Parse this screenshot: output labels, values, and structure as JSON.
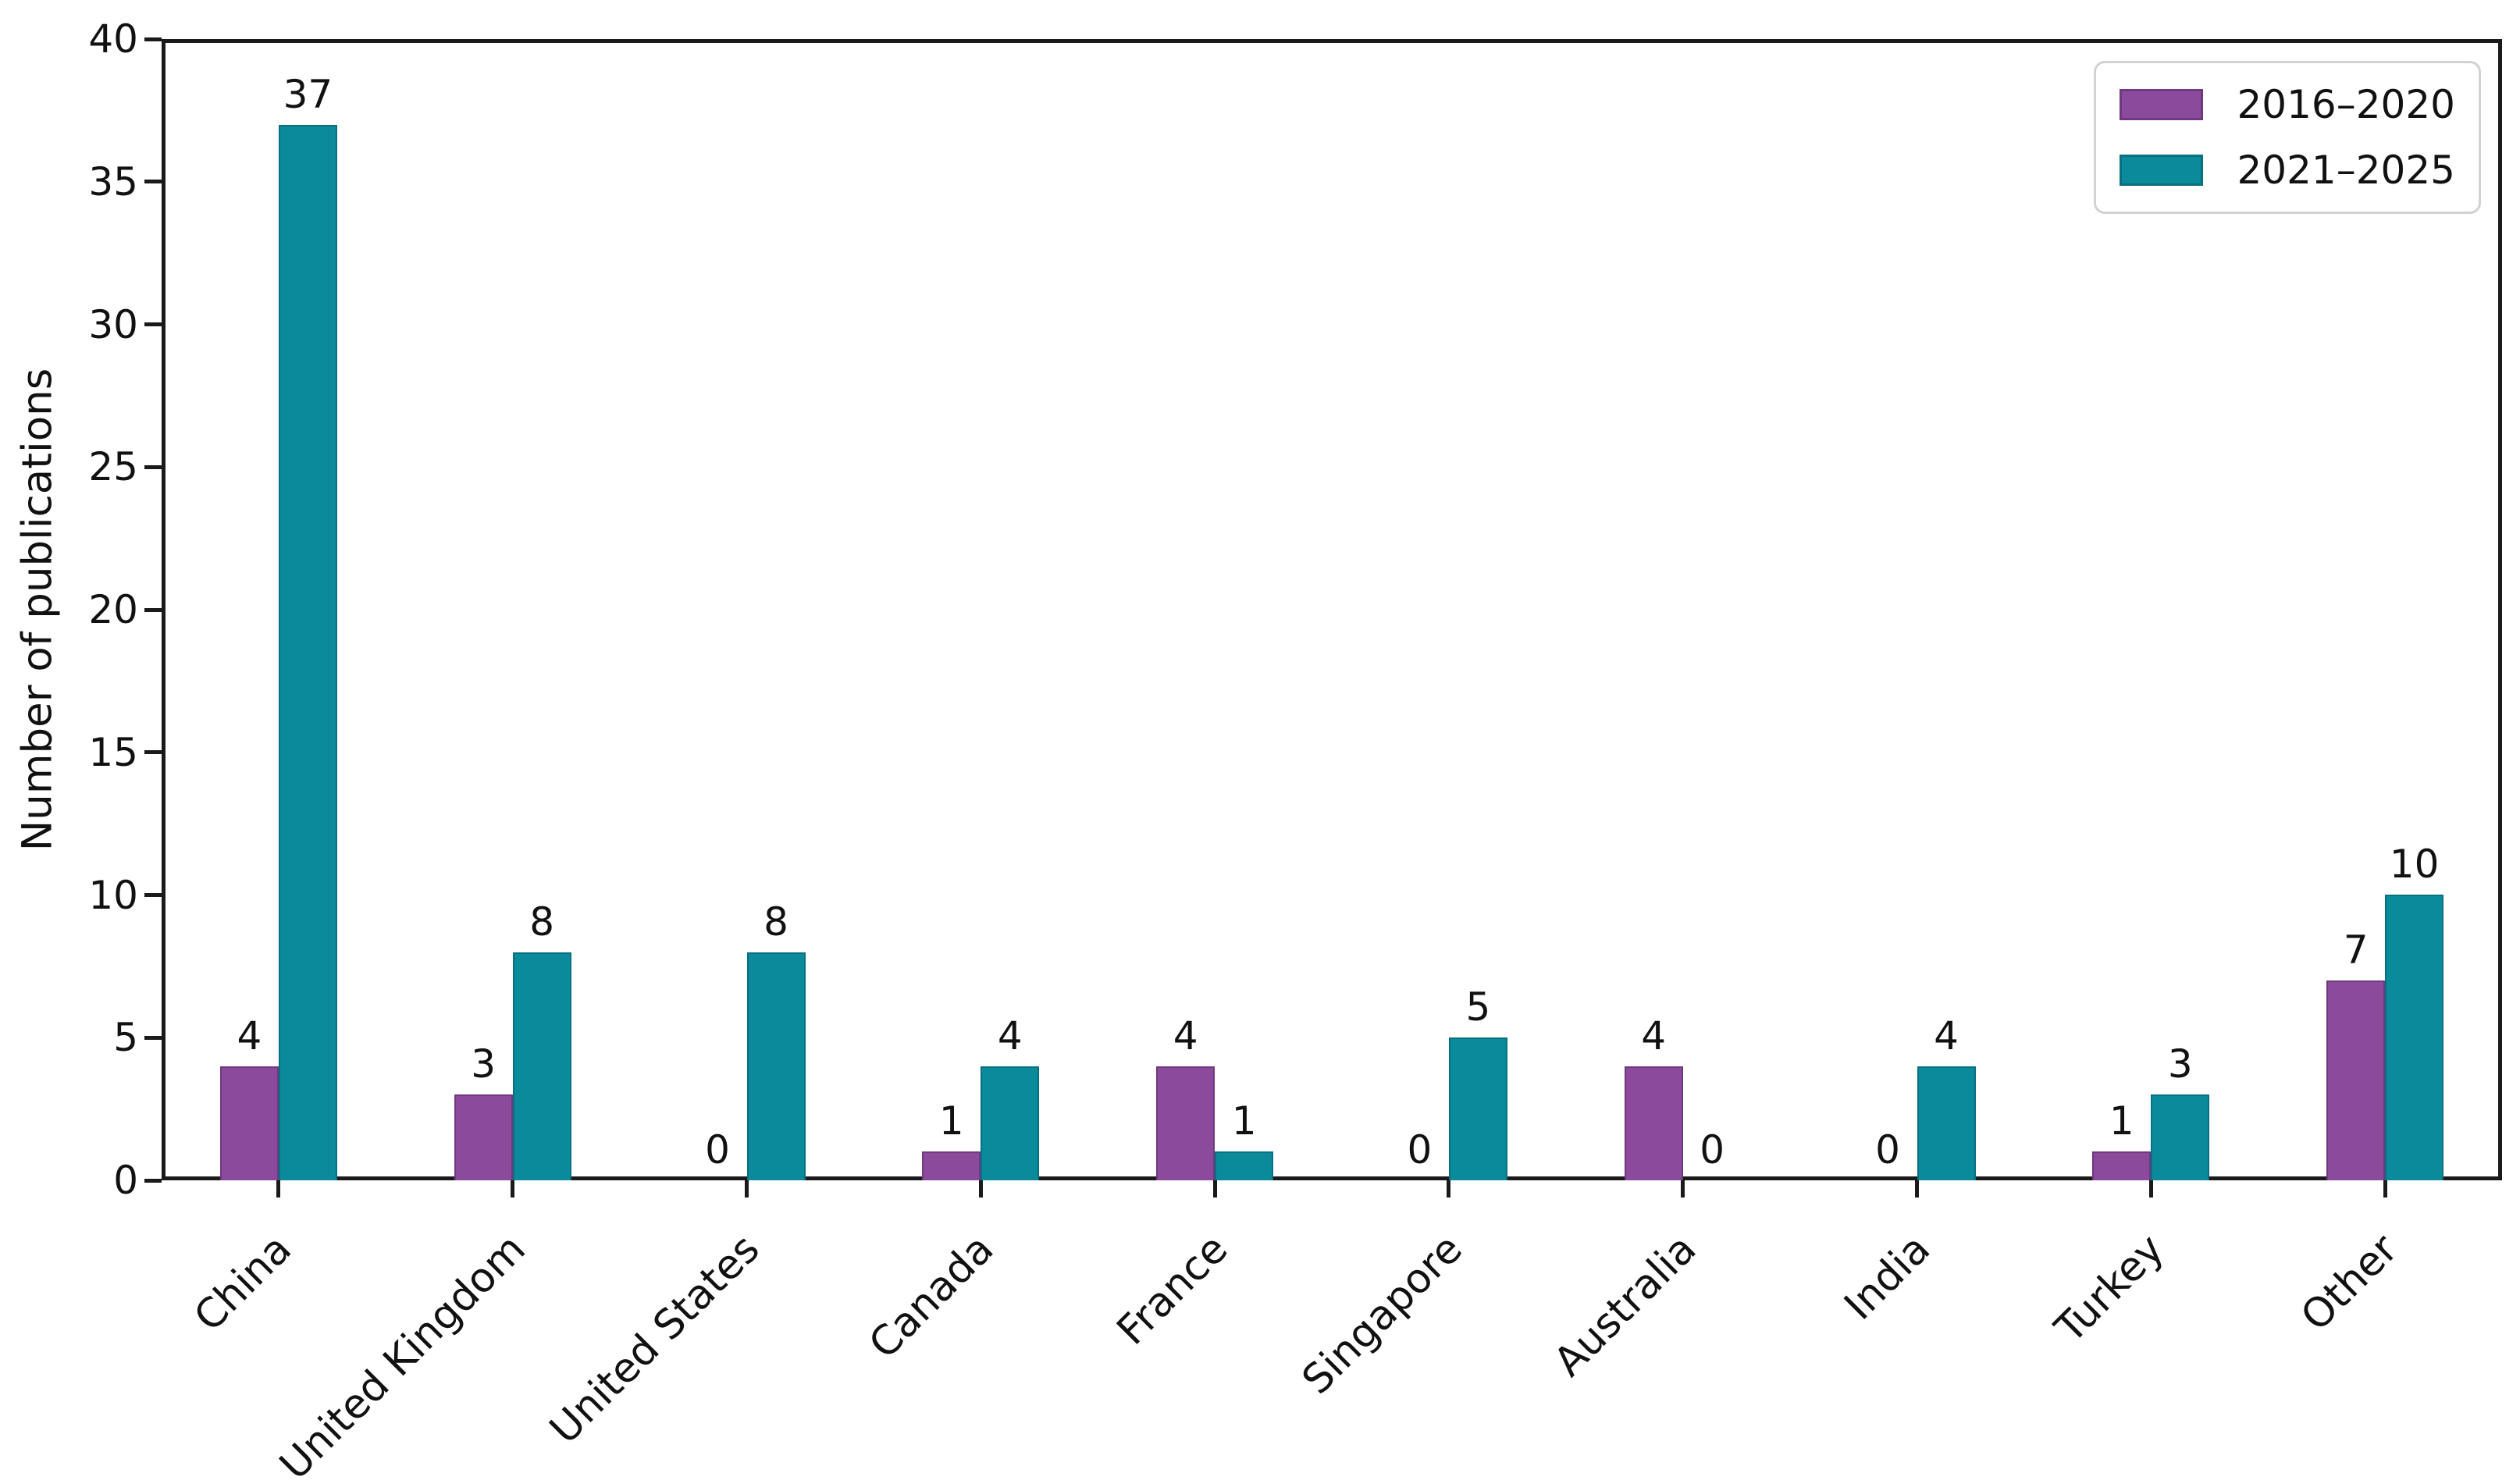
{
  "figure": {
    "background_color": "#ffffff",
    "axis_color": "#1a1a1a"
  },
  "chart_data": {
    "type": "bar",
    "title": "",
    "xlabel": "",
    "ylabel": "Number of publications",
    "ylim": [
      0,
      40
    ],
    "yticks": [
      0,
      5,
      10,
      15,
      20,
      25,
      30,
      35,
      40
    ],
    "grid": false,
    "bar_value_labels": true,
    "x_tick_label_rotation_deg": 45,
    "categories": [
      "China",
      "United Kingdom",
      "United States",
      "Canada",
      "France",
      "Singapore",
      "Australia",
      "India",
      "Turkey",
      "Other"
    ],
    "series": [
      {
        "name": "2016–2020",
        "color": "#8C4A9C",
        "edge_color": "#6F3880",
        "values": [
          4,
          3,
          0,
          1,
          4,
          0,
          4,
          0,
          1,
          7
        ]
      },
      {
        "name": "2021–2025",
        "color": "#0A8A9A",
        "edge_color": "#077082",
        "values": [
          37,
          8,
          8,
          4,
          1,
          5,
          0,
          4,
          3,
          10
        ]
      }
    ],
    "legend": {
      "position": "upper right"
    }
  }
}
